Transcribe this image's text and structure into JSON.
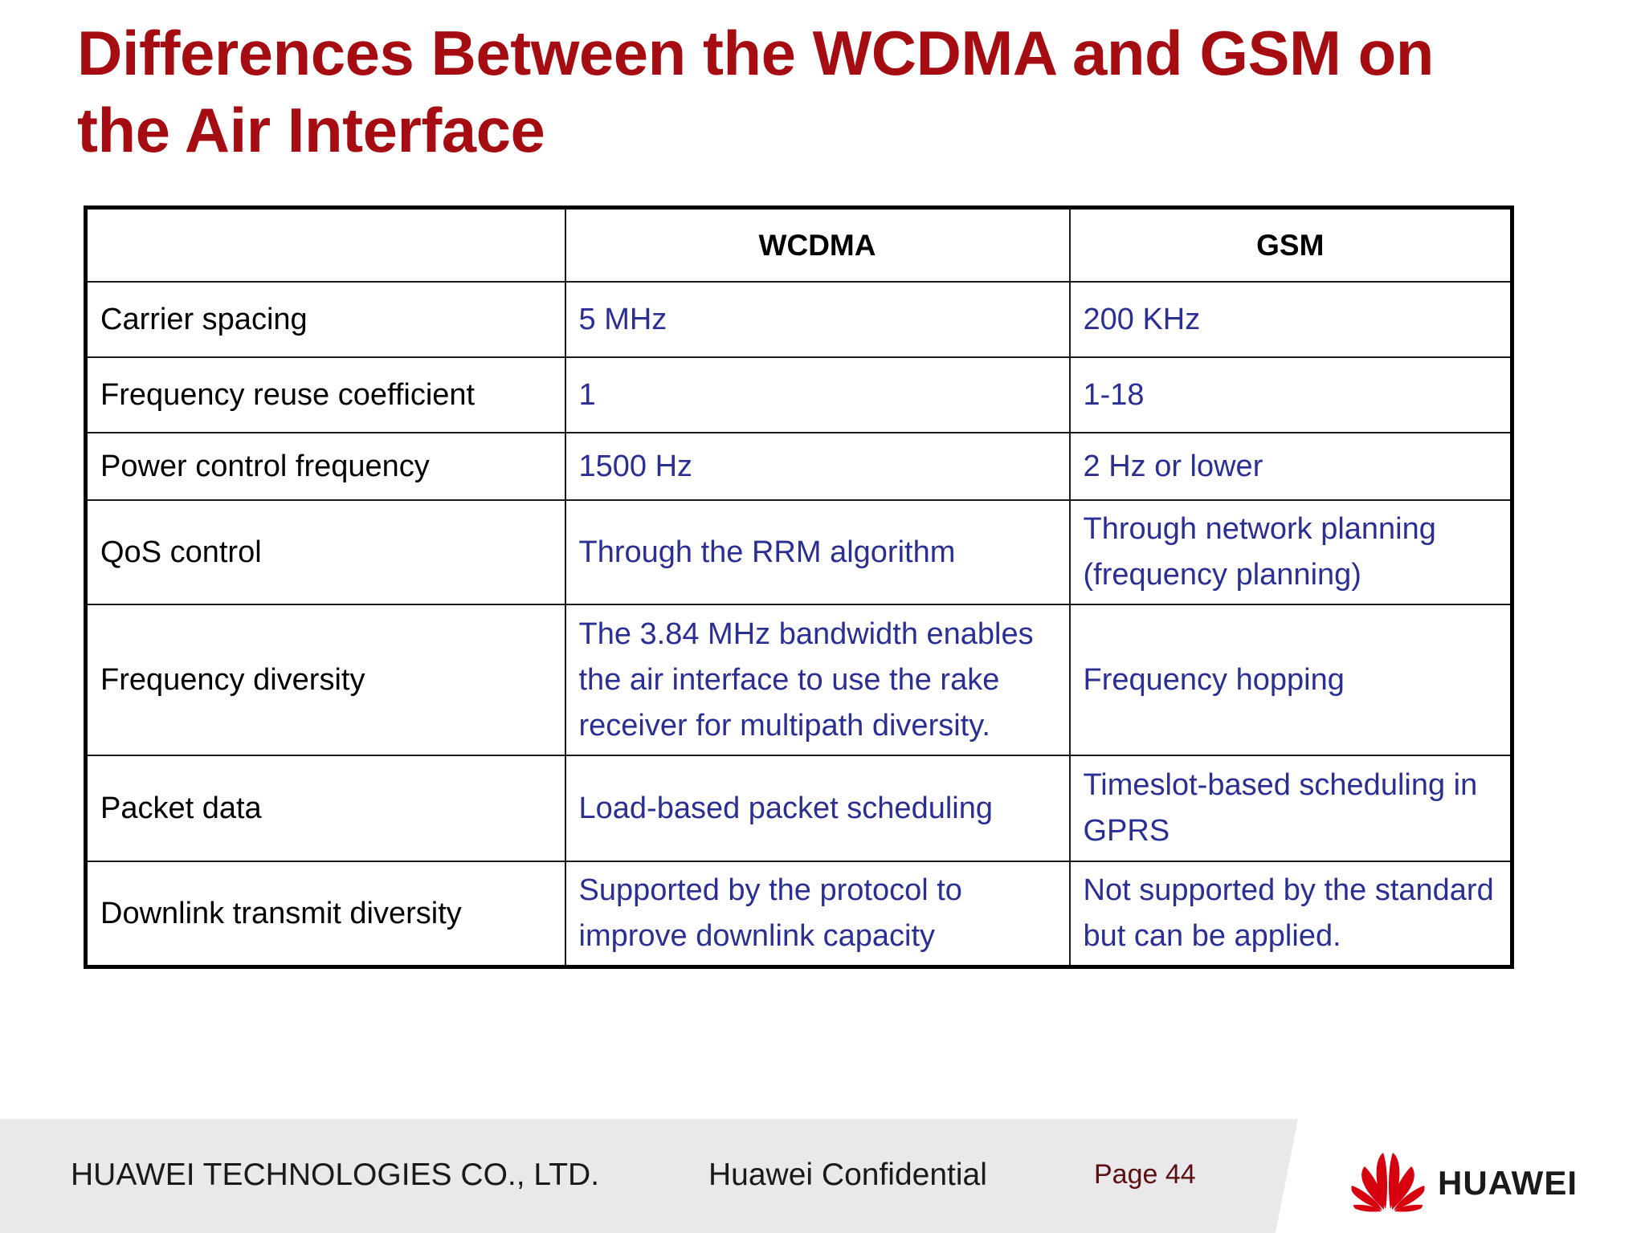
{
  "title": {
    "line1": "Differences Between the WCDMA and GSM on",
    "line2": "the Air Interface"
  },
  "table": {
    "headers": [
      "",
      "WCDMA",
      "GSM"
    ],
    "rows": [
      {
        "label": "Carrier spacing",
        "wcdma": "5 MHz",
        "gsm": "200 KHz"
      },
      {
        "label": "Frequency reuse coefficient",
        "wcdma": "1",
        "gsm": "1-18"
      },
      {
        "label": "Power control frequency",
        "wcdma": "1500 Hz",
        "gsm": "2 Hz or lower"
      },
      {
        "label": "QoS control",
        "wcdma": "Through the RRM algorithm",
        "gsm": "Through network planning (frequency planning)"
      },
      {
        "label": "Frequency diversity",
        "wcdma": "The 3.84 MHz bandwidth enables the air interface to use the rake receiver for multipath diversity.",
        "gsm": "Frequency hopping"
      },
      {
        "label": "Packet data",
        "wcdma": "Load-based packet scheduling",
        "gsm": "Timeslot-based scheduling in GPRS"
      },
      {
        "label": "Downlink transmit diversity",
        "wcdma": "Supported by the protocol to improve downlink capacity",
        "gsm": " Not supported by the standard but can be applied."
      }
    ]
  },
  "footer": {
    "company": "HUAWEI TECHNOLOGIES CO., LTD.",
    "confidential": "Huawei Confidential",
    "page": "Page 44",
    "logo_text": "HUAWEI",
    "logo_icon": "huawei-petal-logo",
    "logo_color": "#d7000f"
  },
  "colors": {
    "title": "#a50d12",
    "value_text": "#2b2f94",
    "footer_bg": "#e9e8ea"
  }
}
